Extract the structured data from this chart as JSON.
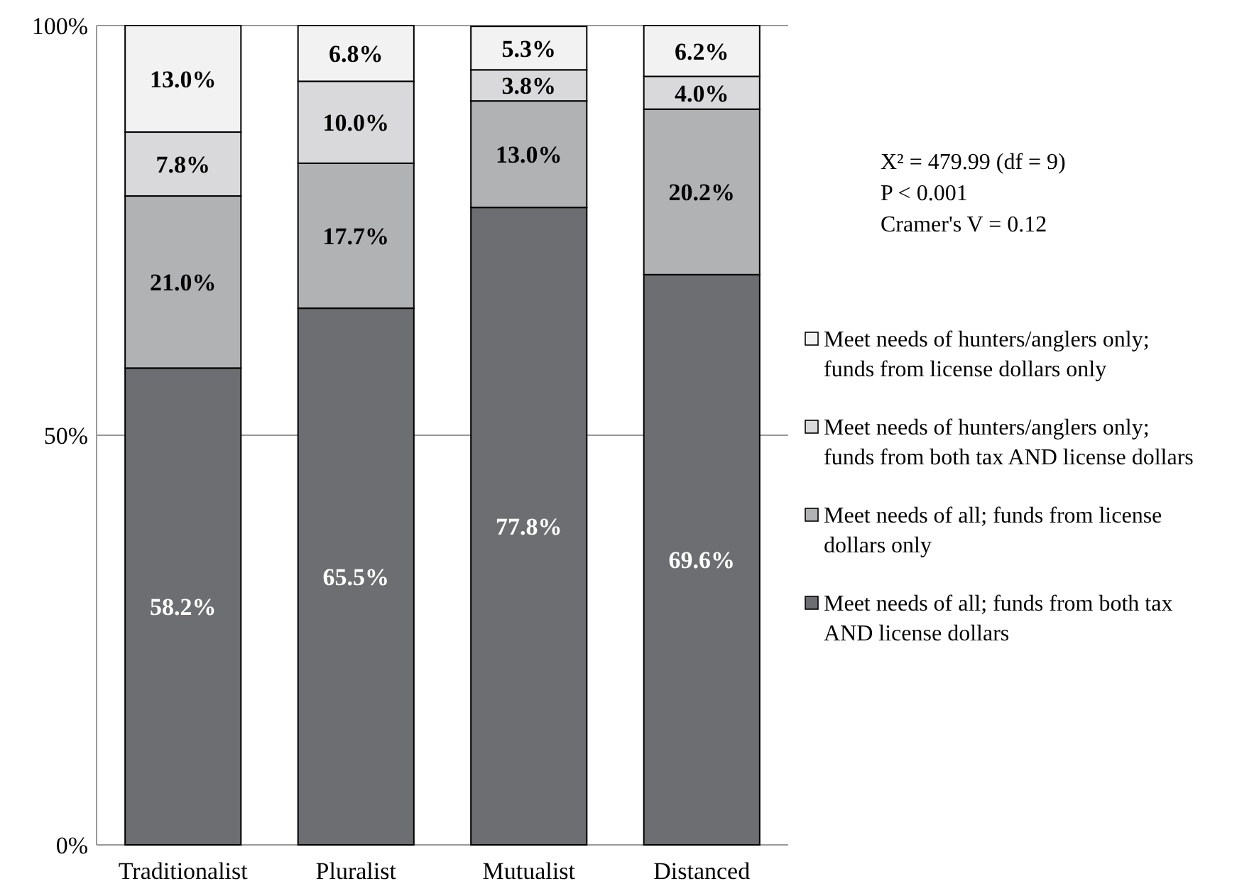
{
  "chart_data": {
    "type": "bar",
    "stacked": true,
    "categories": [
      "Traditionalist",
      "Pluralist",
      "Mutualist",
      "Distanced"
    ],
    "ylim": [
      0,
      100
    ],
    "yticks": [
      {
        "value": 0,
        "label": "0%"
      },
      {
        "value": 50,
        "label": "50%"
      },
      {
        "value": 100,
        "label": "100%"
      }
    ],
    "grid": "y",
    "legend": "right",
    "series": [
      {
        "name": "Meet needs of all; funds from both tax AND license dollars",
        "color": "#6d6e71",
        "values": [
          58.2,
          65.5,
          77.8,
          69.6
        ],
        "value_labels": [
          "58.2%",
          "65.5%",
          "77.8%",
          "69.6%"
        ]
      },
      {
        "name": "Meet needs of all; funds from license dollars only",
        "color": "#b1b2b4",
        "values": [
          21.0,
          17.7,
          13.0,
          20.2
        ],
        "value_labels": [
          "21.0%",
          "17.7%",
          "13.0%",
          "20.2%"
        ]
      },
      {
        "name": "Meet needs of hunters/anglers only; funds from both tax AND license dollars",
        "color": "#d9d9db",
        "values": [
          7.8,
          10.0,
          3.8,
          4.0
        ],
        "value_labels": [
          "7.8%",
          "10.0%",
          "3.8%",
          "4.0%"
        ]
      },
      {
        "name": "Meet needs of hunters/anglers only; funds from license dollars only",
        "color": "#f2f2f3",
        "values": [
          13.0,
          6.8,
          5.3,
          6.2
        ],
        "value_labels": [
          "13.0%",
          "6.8%",
          "5.3%",
          "6.2%"
        ]
      }
    ],
    "annotations": [
      "X² = 479.99 (df = 9)",
      "P < 0.001",
      "Cramer's V = 0.12"
    ]
  }
}
